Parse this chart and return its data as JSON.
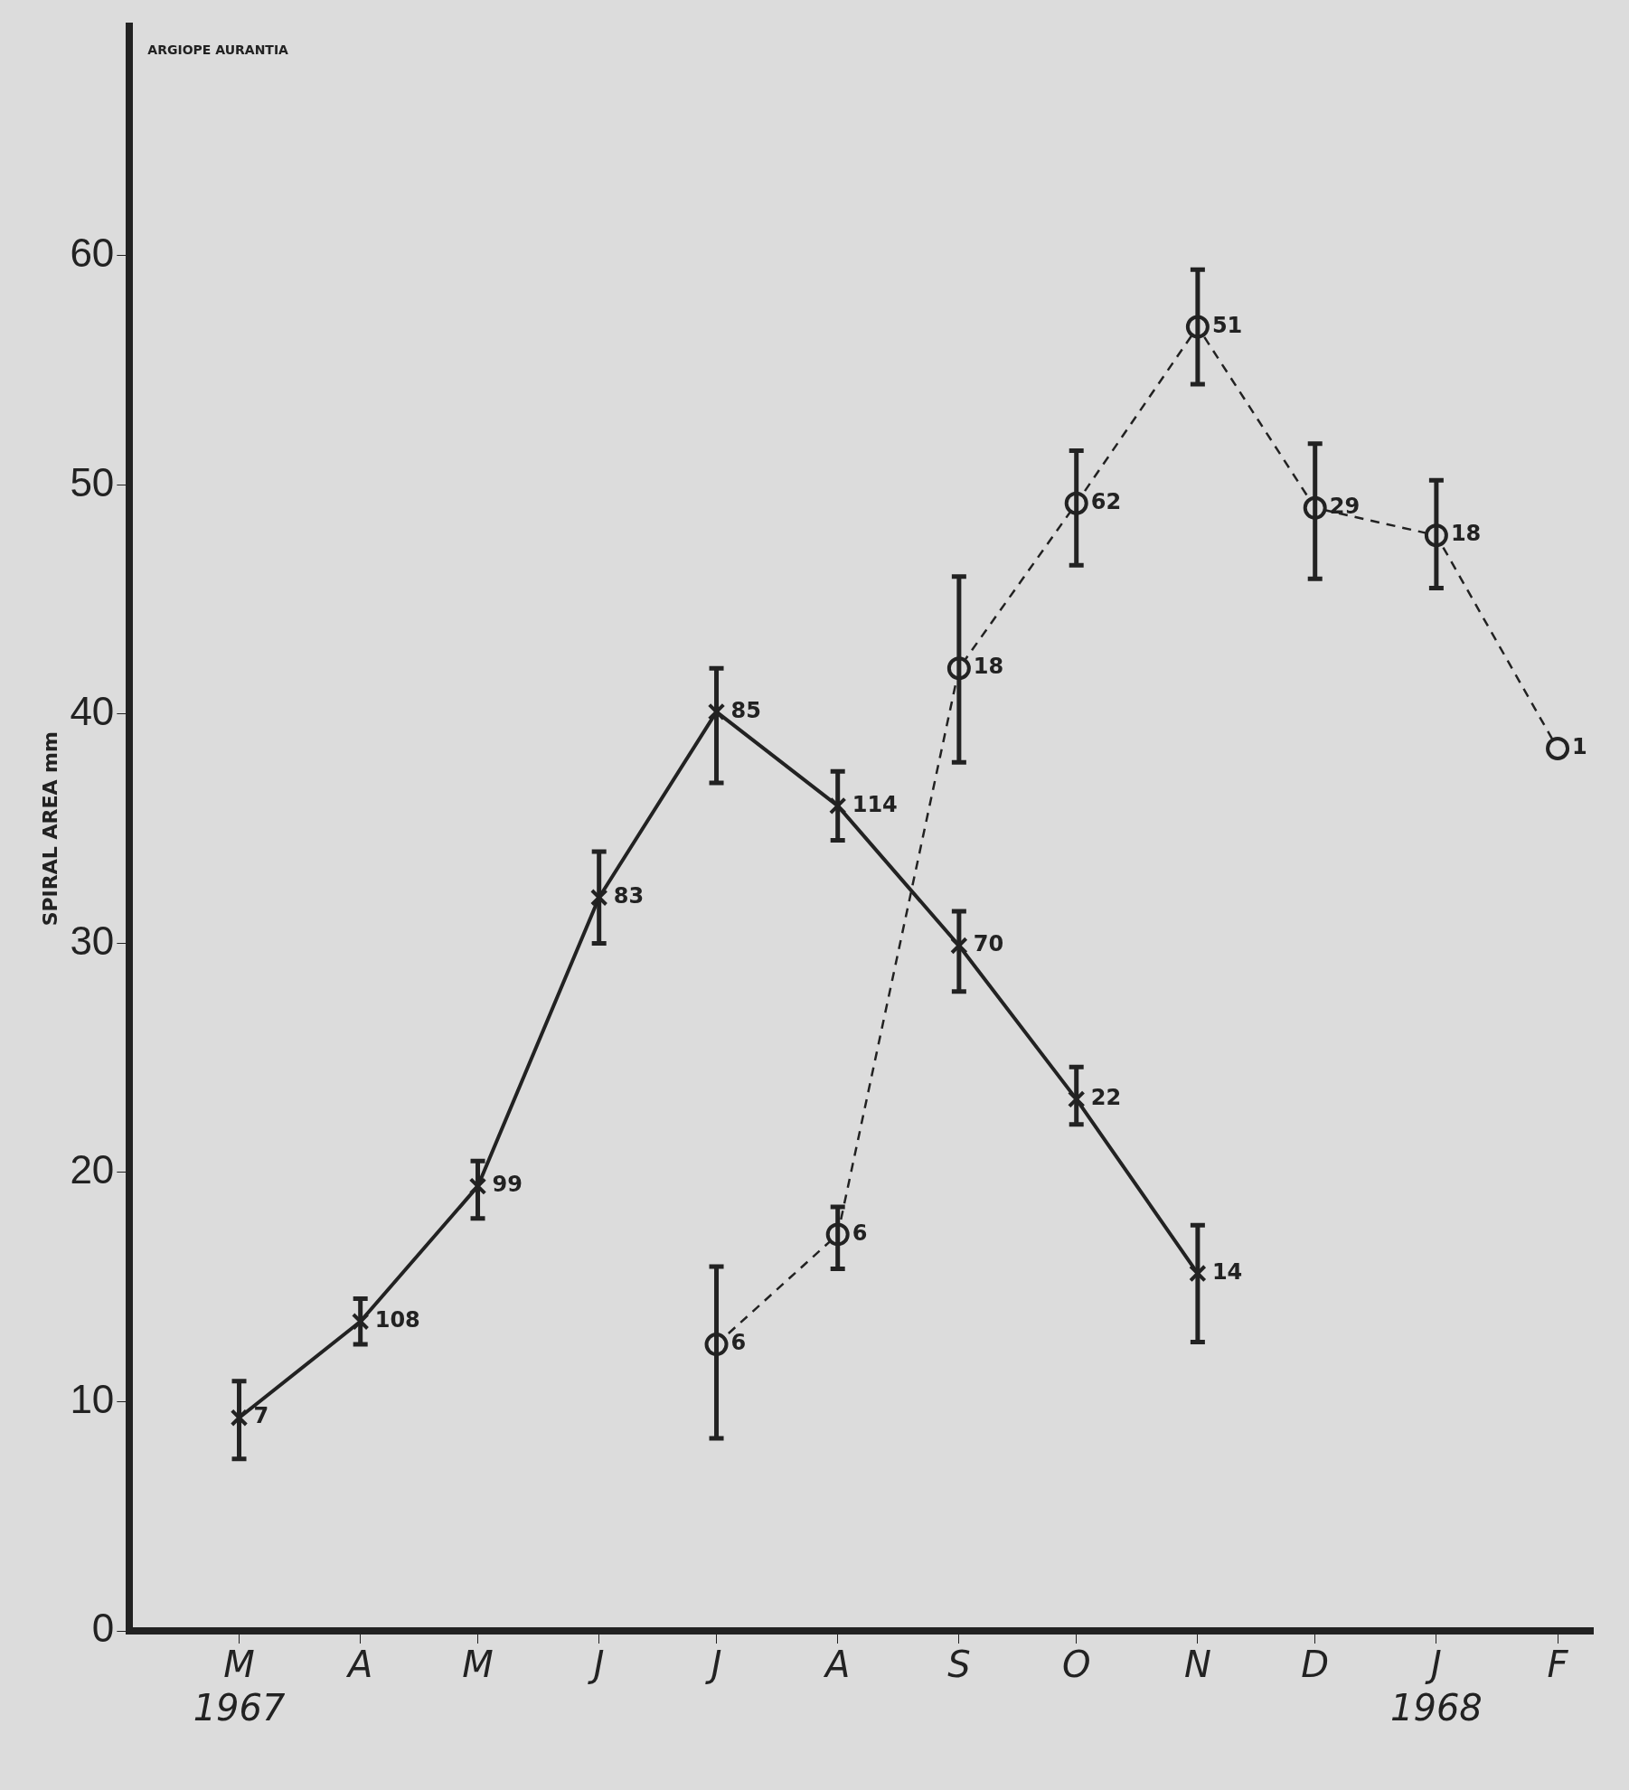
{
  "chart_data": {
    "type": "line",
    "title": "ARGIOPE AURANTIA",
    "ylabel": "SPIRAL AREA mm",
    "x": [
      "1967-03",
      "1967-04",
      "1967-05",
      "1967-06",
      "1967-07",
      "1967-08",
      "1967-09",
      "1967-10",
      "1967-11",
      "1967-12",
      "1968-01",
      "1968-02"
    ],
    "xlim": [
      "1967-02",
      "1968-02-10"
    ],
    "xticks": [
      {
        "value": "1967-03",
        "label": "M\n1967"
      },
      {
        "value": "1967-04",
        "label": "A"
      },
      {
        "value": "1967-05",
        "label": "M"
      },
      {
        "value": "1967-06",
        "label": "J"
      },
      {
        "value": "1967-07",
        "label": "J"
      },
      {
        "value": "1967-08",
        "label": "A"
      },
      {
        "value": "1967-09",
        "label": "S"
      },
      {
        "value": "1967-10",
        "label": "O"
      },
      {
        "value": "1967-11",
        "label": "N"
      },
      {
        "value": "1967-12",
        "label": "D"
      },
      {
        "value": "1968-01",
        "label": "J\n1968"
      },
      {
        "value": "1968-02",
        "label": "F"
      }
    ],
    "ylim": [
      0,
      70
    ],
    "yticks": [
      0,
      10,
      20,
      30,
      40,
      50,
      60
    ],
    "grid": false,
    "legend": false,
    "series": [
      {
        "color": "#222222",
        "marker": "cross",
        "line_style": "solid",
        "values": [
          9.3,
          13.5,
          19.4,
          32.0,
          40.1,
          36.0,
          29.9,
          23.2,
          15.6,
          null,
          null,
          null
        ],
        "errors": [
          [
            7.5,
            10.9
          ],
          [
            12.5,
            14.5
          ],
          [
            18.0,
            20.5
          ],
          [
            30.0,
            34.0
          ],
          [
            37.0,
            42.0
          ],
          [
            34.5,
            37.5
          ],
          [
            27.9,
            31.4
          ],
          [
            22.1,
            24.6
          ],
          [
            12.6,
            17.7
          ],
          null,
          null,
          null
        ]
      },
      {
        "color": "#222222",
        "marker": "circle",
        "line_style": "dashed",
        "values": [
          null,
          null,
          null,
          null,
          12.5,
          17.3,
          42.0,
          49.2,
          56.9,
          49.0,
          47.8,
          38.5
        ],
        "errors": [
          null,
          null,
          null,
          null,
          [
            8.4,
            15.9
          ],
          [
            15.8,
            18.5
          ],
          [
            37.9,
            46.0
          ],
          [
            46.5,
            51.5
          ],
          [
            54.4,
            59.4
          ],
          [
            45.9,
            51.8
          ],
          [
            45.5,
            50.2
          ],
          null
        ]
      }
    ],
    "annotations": [
      {
        "text": "7",
        "x": "1967-03",
        "y": 9.3
      },
      {
        "text": "108",
        "x": "1967-04",
        "y": 13.5
      },
      {
        "text": "99",
        "x": "1967-05",
        "y": 19.4
      },
      {
        "text": "83",
        "x": "1967-06",
        "y": 32.0
      },
      {
        "text": "85",
        "x": "1967-07",
        "y": 40.1
      },
      {
        "text": "114",
        "x": "1967-08",
        "y": 36.0
      },
      {
        "text": "70",
        "x": "1967-09",
        "y": 29.9
      },
      {
        "text": "22",
        "x": "1967-10",
        "y": 23.2
      },
      {
        "text": "14",
        "x": "1967-11",
        "y": 15.6
      },
      {
        "text": "6",
        "x": "1967-07",
        "y": 12.5
      },
      {
        "text": "6",
        "x": "1967-08",
        "y": 17.3
      },
      {
        "text": "18",
        "x": "1967-09",
        "y": 42.0
      },
      {
        "text": "62",
        "x": "1967-10",
        "y": 49.2
      },
      {
        "text": "51",
        "x": "1967-11",
        "y": 56.9
      },
      {
        "text": "29",
        "x": "1967-12",
        "y": 49.0
      },
      {
        "text": "18",
        "x": "1968-01",
        "y": 47.8
      },
      {
        "text": "1",
        "x": "1968-02",
        "y": 38.5
      }
    ]
  }
}
